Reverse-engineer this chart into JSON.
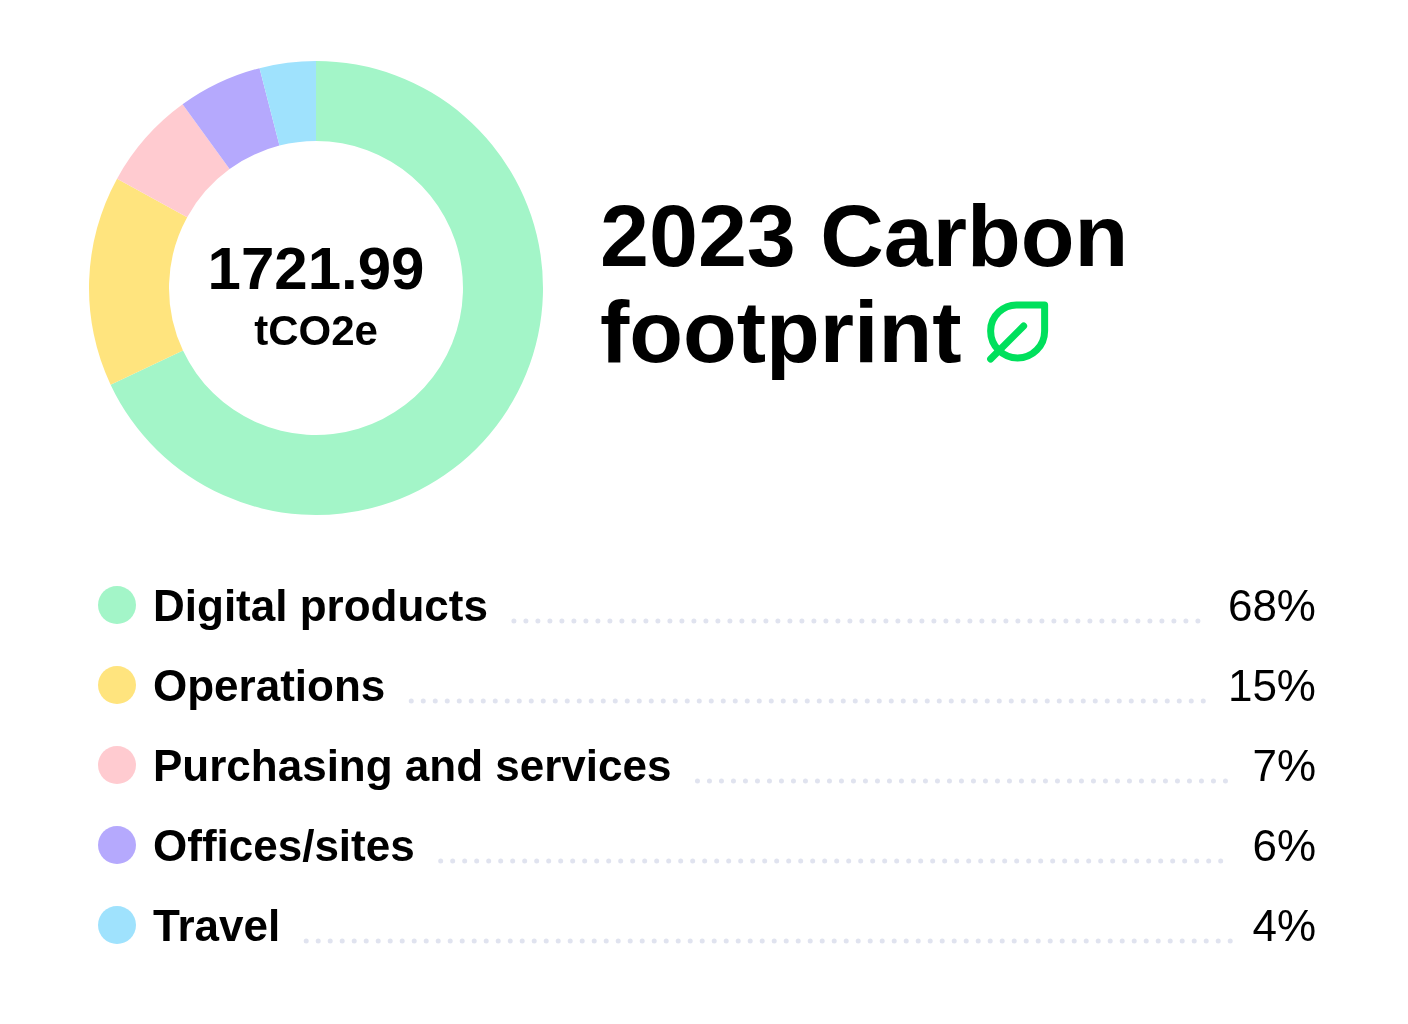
{
  "chart_data": {
    "type": "donut",
    "title": "2023 Carbon footprint",
    "categories": [
      "Digital products",
      "Operations",
      "Purchasing and services",
      "Offices/sites",
      "Travel"
    ],
    "values": [
      68,
      15,
      7,
      6,
      4
    ],
    "colors": [
      "#a3f5c8",
      "#ffe47e",
      "#ffcbd0",
      "#b5a9fd",
      "#9fe2fd"
    ],
    "value_labels": [
      "68%",
      "15%",
      "7%",
      "6%",
      "4%"
    ],
    "annotations": [
      "1721.99",
      "tCO2e"
    ],
    "legend": "bottom"
  }
}
